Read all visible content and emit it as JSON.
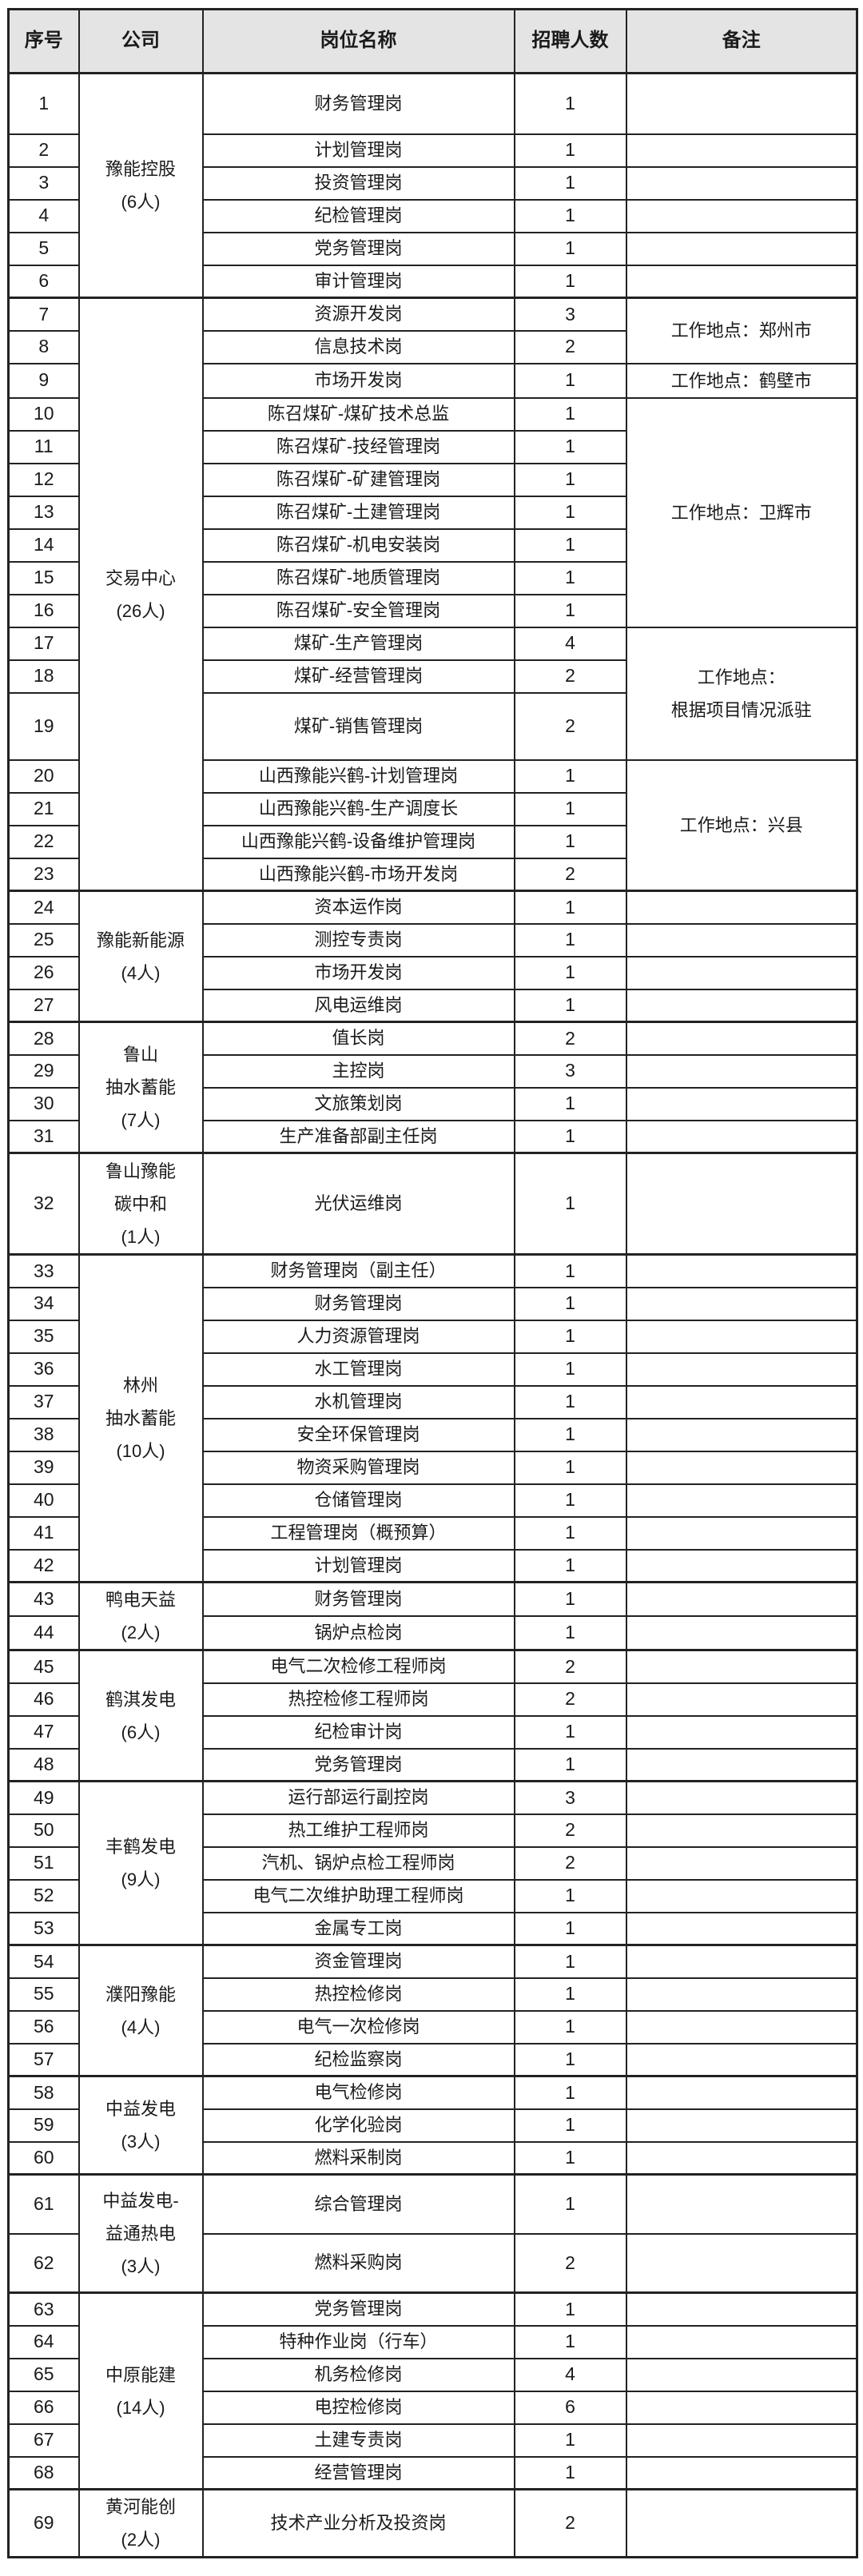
{
  "table": {
    "columns": [
      "序号",
      "公司",
      "岗位名称",
      "招聘人数",
      "备注"
    ],
    "default_row_height": 41,
    "colors": {
      "header_bg": "#e4e4e4",
      "border": "#222222",
      "text": "#1a1a1a",
      "page_bg": "#ffffff"
    },
    "groups": [
      {
        "company_lines": [
          "豫能控股",
          "(6人)"
        ],
        "rows": [
          {
            "no": "1",
            "pos": "财务管理岗",
            "n": "1",
            "h": 76
          },
          {
            "no": "2",
            "pos": "计划管理岗",
            "n": "1"
          },
          {
            "no": "3",
            "pos": "投资管理岗",
            "n": "1"
          },
          {
            "no": "4",
            "pos": "纪检管理岗",
            "n": "1"
          },
          {
            "no": "5",
            "pos": "党务管理岗",
            "n": "1"
          },
          {
            "no": "6",
            "pos": "审计管理岗",
            "n": "1"
          }
        ]
      },
      {
        "company_lines": [
          "交易中心",
          "(26人)"
        ],
        "rows": [
          {
            "no": "7",
            "pos": "资源开发岗",
            "n": "3",
            "note": {
              "span": 2,
              "lines": [
                "工作地点：郑州市"
              ]
            }
          },
          {
            "no": "8",
            "pos": "信息技术岗",
            "n": "2"
          },
          {
            "no": "9",
            "pos": "市场开发岗",
            "n": "1",
            "note": {
              "span": 1,
              "lines": [
                "工作地点：鹤壁市"
              ]
            }
          },
          {
            "no": "10",
            "pos": "陈召煤矿-煤矿技术总监",
            "n": "1",
            "note": {
              "span": 7,
              "lines": [
                "工作地点：卫辉市"
              ]
            }
          },
          {
            "no": "11",
            "pos": "陈召煤矿-技经管理岗",
            "n": "1"
          },
          {
            "no": "12",
            "pos": "陈召煤矿-矿建管理岗",
            "n": "1"
          },
          {
            "no": "13",
            "pos": "陈召煤矿-土建管理岗",
            "n": "1"
          },
          {
            "no": "14",
            "pos": "陈召煤矿-机电安装岗",
            "n": "1"
          },
          {
            "no": "15",
            "pos": "陈召煤矿-地质管理岗",
            "n": "1"
          },
          {
            "no": "16",
            "pos": "陈召煤矿-安全管理岗",
            "n": "1"
          },
          {
            "no": "17",
            "pos": "煤矿-生产管理岗",
            "n": "4",
            "note": {
              "span": 3,
              "lines": [
                "工作地点：",
                "根据项目情况派驻"
              ]
            }
          },
          {
            "no": "18",
            "pos": "煤矿-经营管理岗",
            "n": "2"
          },
          {
            "no": "19",
            "pos": "煤矿-销售管理岗",
            "n": "2",
            "h": 84
          },
          {
            "no": "20",
            "pos": "山西豫能兴鹤-计划管理岗",
            "n": "1",
            "note": {
              "span": 4,
              "lines": [
                "工作地点：兴县"
              ]
            }
          },
          {
            "no": "21",
            "pos": "山西豫能兴鹤-生产调度长",
            "n": "1"
          },
          {
            "no": "22",
            "pos": "山西豫能兴鹤-设备维护管理岗",
            "n": "1"
          },
          {
            "no": "23",
            "pos": "山西豫能兴鹤-市场开发岗",
            "n": "2"
          }
        ]
      },
      {
        "company_lines": [
          "豫能新能源",
          "(4人)"
        ],
        "rows": [
          {
            "no": "24",
            "pos": "资本运作岗",
            "n": "1"
          },
          {
            "no": "25",
            "pos": "测控专责岗",
            "n": "1"
          },
          {
            "no": "26",
            "pos": "市场开发岗",
            "n": "1"
          },
          {
            "no": "27",
            "pos": "风电运维岗",
            "n": "1"
          }
        ]
      },
      {
        "company_lines": [
          "鲁山",
          "抽水蓄能",
          "(7人)"
        ],
        "rows": [
          {
            "no": "28",
            "pos": "值长岗",
            "n": "2"
          },
          {
            "no": "29",
            "pos": "主控岗",
            "n": "3"
          },
          {
            "no": "30",
            "pos": "文旅策划岗",
            "n": "1"
          },
          {
            "no": "31",
            "pos": "生产准备部副主任岗",
            "n": "1"
          }
        ]
      },
      {
        "company_lines": [
          "鲁山豫能",
          "碳中和",
          "(1人)"
        ],
        "rows": [
          {
            "no": "32",
            "pos": "光伏运维岗",
            "n": "1",
            "h": 127
          }
        ]
      },
      {
        "company_lines": [
          "林州",
          "抽水蓄能",
          "(10人)"
        ],
        "rows": [
          {
            "no": "33",
            "pos": "财务管理岗（副主任）",
            "n": "1"
          },
          {
            "no": "34",
            "pos": "财务管理岗",
            "n": "1"
          },
          {
            "no": "35",
            "pos": "人力资源管理岗",
            "n": "1"
          },
          {
            "no": "36",
            "pos": "水工管理岗",
            "n": "1"
          },
          {
            "no": "37",
            "pos": "水机管理岗",
            "n": "1"
          },
          {
            "no": "38",
            "pos": "安全环保管理岗",
            "n": "1"
          },
          {
            "no": "39",
            "pos": "物资采购管理岗",
            "n": "1"
          },
          {
            "no": "40",
            "pos": "仓储管理岗",
            "n": "1"
          },
          {
            "no": "41",
            "pos": "工程管理岗（概预算）",
            "n": "1"
          },
          {
            "no": "42",
            "pos": "计划管理岗",
            "n": "1"
          }
        ]
      },
      {
        "company_lines": [
          "鸭电天益",
          "(2人)"
        ],
        "rows": [
          {
            "no": "43",
            "pos": "财务管理岗",
            "n": "1"
          },
          {
            "no": "44",
            "pos": "锅炉点检岗",
            "n": "1"
          }
        ]
      },
      {
        "company_lines": [
          "鹤淇发电",
          "(6人)"
        ],
        "rows": [
          {
            "no": "45",
            "pos": "电气二次检修工程师岗",
            "n": "2"
          },
          {
            "no": "46",
            "pos": "热控检修工程师岗",
            "n": "2"
          },
          {
            "no": "47",
            "pos": "纪检审计岗",
            "n": "1"
          },
          {
            "no": "48",
            "pos": "党务管理岗",
            "n": "1"
          }
        ]
      },
      {
        "company_lines": [
          "丰鹤发电",
          "(9人)"
        ],
        "rows": [
          {
            "no": "49",
            "pos": "运行部运行副控岗",
            "n": "3"
          },
          {
            "no": "50",
            "pos": "热工维护工程师岗",
            "n": "2"
          },
          {
            "no": "51",
            "pos": "汽机、锅炉点检工程师岗",
            "n": "2"
          },
          {
            "no": "52",
            "pos": "电气二次维护助理工程师岗",
            "n": "1"
          },
          {
            "no": "53",
            "pos": "金属专工岗",
            "n": "1"
          }
        ]
      },
      {
        "company_lines": [
          "濮阳豫能",
          "(4人)"
        ],
        "rows": [
          {
            "no": "54",
            "pos": "资金管理岗",
            "n": "1"
          },
          {
            "no": "55",
            "pos": "热控检修岗",
            "n": "1"
          },
          {
            "no": "56",
            "pos": "电气一次检修岗",
            "n": "1"
          },
          {
            "no": "57",
            "pos": "纪检监察岗",
            "n": "1"
          }
        ]
      },
      {
        "company_lines": [
          "中益发电",
          "(3人)"
        ],
        "rows": [
          {
            "no": "58",
            "pos": "电气检修岗",
            "n": "1"
          },
          {
            "no": "59",
            "pos": "化学化验岗",
            "n": "1"
          },
          {
            "no": "60",
            "pos": "燃料采制岗",
            "n": "1"
          }
        ]
      },
      {
        "company_lines": [
          "中益发电-",
          "益通热电",
          "(3人)"
        ],
        "rows": [
          {
            "no": "61",
            "pos": "综合管理岗",
            "n": "1",
            "h": 74
          },
          {
            "no": "62",
            "pos": "燃料采购岗",
            "n": "2",
            "h": 74
          }
        ]
      },
      {
        "company_lines": [
          "中原能建",
          "(14人)"
        ],
        "rows": [
          {
            "no": "63",
            "pos": "党务管理岗",
            "n": "1"
          },
          {
            "no": "64",
            "pos": "特种作业岗（行车）",
            "n": "1"
          },
          {
            "no": "65",
            "pos": "机务检修岗",
            "n": "4"
          },
          {
            "no": "66",
            "pos": "电控检修岗",
            "n": "6"
          },
          {
            "no": "67",
            "pos": "土建专责岗",
            "n": "1"
          },
          {
            "no": "68",
            "pos": "经营管理岗",
            "n": "1"
          }
        ]
      },
      {
        "company_lines": [
          "黄河能创",
          "(2人)"
        ],
        "rows": [
          {
            "no": "69",
            "pos": "技术产业分析及投资岗",
            "n": "2",
            "h": 84
          }
        ]
      }
    ]
  }
}
